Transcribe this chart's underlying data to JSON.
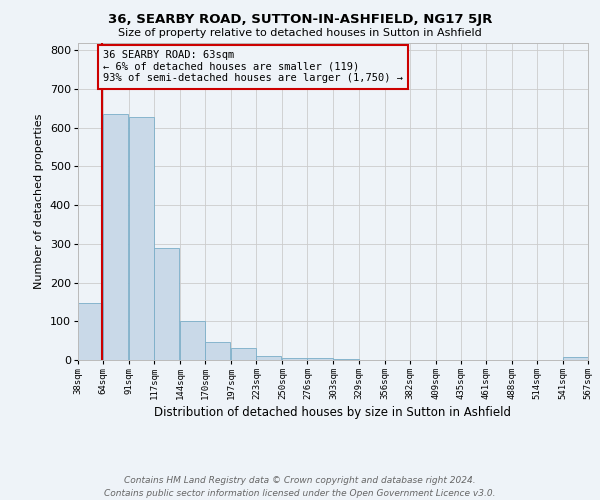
{
  "title": "36, SEARBY ROAD, SUTTON-IN-ASHFIELD, NG17 5JR",
  "subtitle": "Size of property relative to detached houses in Sutton in Ashfield",
  "xlabel": "Distribution of detached houses by size in Sutton in Ashfield",
  "ylabel": "Number of detached properties",
  "bin_edges": [
    38,
    64,
    91,
    117,
    144,
    170,
    197,
    223,
    250,
    276,
    303,
    329,
    356,
    382,
    409,
    435,
    461,
    488,
    514,
    541,
    567
  ],
  "bin_heights": [
    148,
    635,
    627,
    288,
    101,
    46,
    30,
    10,
    5,
    4,
    3,
    0,
    0,
    0,
    0,
    0,
    0,
    0,
    0,
    8
  ],
  "bar_color": "#c9d9e8",
  "bar_edge_color": "#7aaec8",
  "grid_color": "#cccccc",
  "vline_x": 63,
  "vline_color": "#cc0000",
  "annotation_title": "36 SEARBY ROAD: 63sqm",
  "annotation_line1": "← 6% of detached houses are smaller (119)",
  "annotation_line2": "93% of semi-detached houses are larger (1,750) →",
  "annotation_box_color": "#cc0000",
  "tick_labels": [
    "38sqm",
    "64sqm",
    "91sqm",
    "117sqm",
    "144sqm",
    "170sqm",
    "197sqm",
    "223sqm",
    "250sqm",
    "276sqm",
    "303sqm",
    "329sqm",
    "356sqm",
    "382sqm",
    "409sqm",
    "435sqm",
    "461sqm",
    "488sqm",
    "514sqm",
    "541sqm",
    "567sqm"
  ],
  "yticks": [
    0,
    100,
    200,
    300,
    400,
    500,
    600,
    700,
    800
  ],
  "ylim": [
    0,
    820
  ],
  "footnote1": "Contains HM Land Registry data © Crown copyright and database right 2024.",
  "footnote2": "Contains public sector information licensed under the Open Government Licence v3.0.",
  "bg_color": "#eef3f8",
  "title_fontsize": 9.5,
  "subtitle_fontsize": 8,
  "footnote_fontsize": 6.5,
  "footnote_color": "#666666"
}
